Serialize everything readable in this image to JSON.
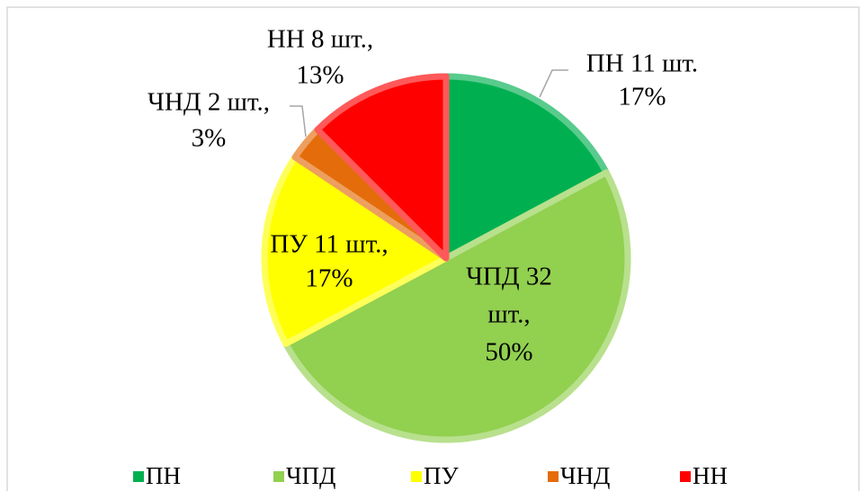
{
  "chart_data": {
    "type": "pie",
    "categories": [
      "ПН",
      "ЧПД",
      "ПУ",
      "ЧНД",
      "НН"
    ],
    "values": [
      11,
      32,
      11,
      2,
      8
    ],
    "value_labels": [
      [
        "ПН 11 шт.",
        "17%"
      ],
      [
        "ЧПД 32",
        "шт.,",
        "50%"
      ],
      [
        "ПУ 11 шт.,",
        "17%"
      ],
      [
        "ЧНД 2 шт.,",
        "3%"
      ],
      [
        "НН 8 шт.,",
        "13%"
      ]
    ],
    "colors": [
      "#00b050",
      "#92d050",
      "#ffff00",
      "#e46c0a",
      "#ff0000"
    ],
    "legend": "bottom"
  }
}
